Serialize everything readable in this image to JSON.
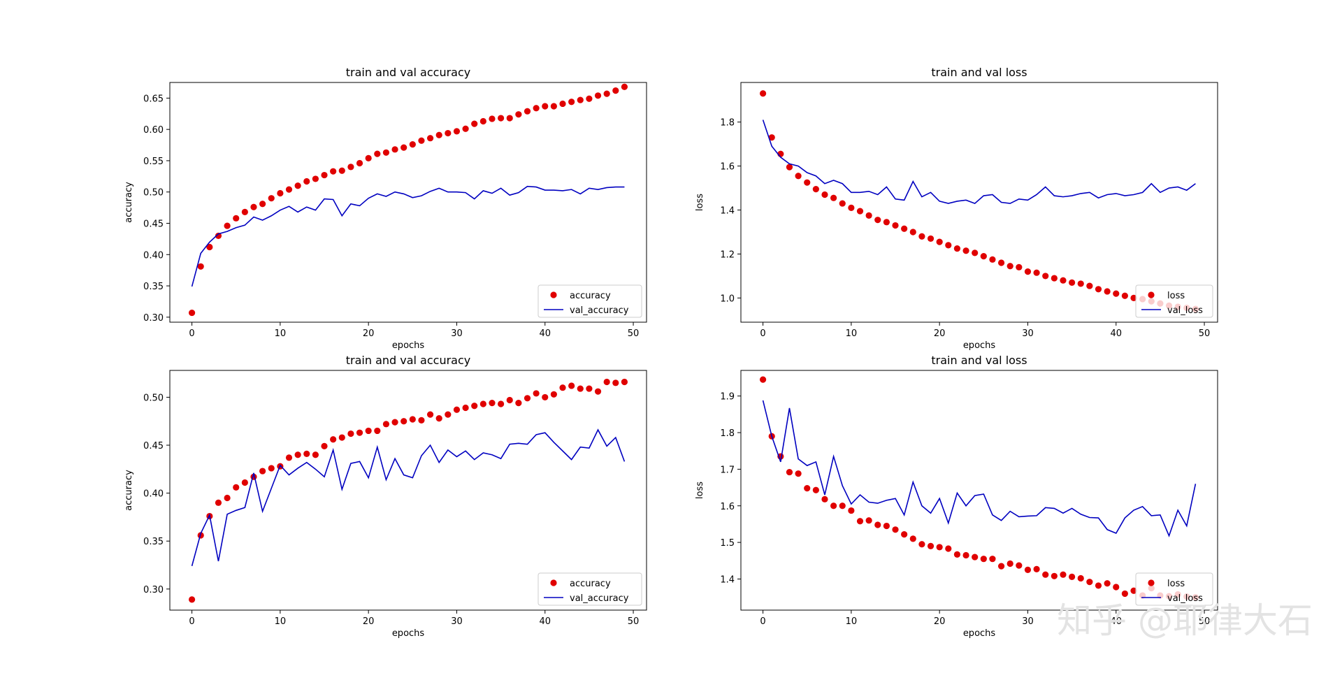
{
  "colors": {
    "train": "#e00000",
    "val": "#0000c0",
    "axis": "#000000",
    "watermark": "#e3e3e3"
  },
  "watermark": "知乎 @耶律大石",
  "chart_data": [
    {
      "type": "scatter+line",
      "title": "train and val accuracy",
      "xlabel": "epochs",
      "ylabel": "accuracy",
      "xlim": [
        -2.5,
        51.5
      ],
      "ylim": [
        0.292,
        0.675
      ],
      "xticks": [
        0,
        10,
        20,
        30,
        40,
        50
      ],
      "yticks": [
        0.3,
        0.35,
        0.4,
        0.45,
        0.5,
        0.55,
        0.6,
        0.65
      ],
      "ytick_labels": [
        "0.30",
        "0.35",
        "0.40",
        "0.45",
        "0.50",
        "0.55",
        "0.60",
        "0.65"
      ],
      "legend": "lower-right",
      "series": [
        {
          "name": "accuracy",
          "style": "dots",
          "values": [
            0.307,
            0.381,
            0.412,
            0.43,
            0.446,
            0.458,
            0.468,
            0.476,
            0.481,
            0.49,
            0.498,
            0.504,
            0.51,
            0.517,
            0.521,
            0.527,
            0.533,
            0.534,
            0.54,
            0.546,
            0.554,
            0.561,
            0.563,
            0.568,
            0.571,
            0.576,
            0.582,
            0.586,
            0.591,
            0.594,
            0.597,
            0.601,
            0.609,
            0.613,
            0.617,
            0.618,
            0.618,
            0.624,
            0.629,
            0.634,
            0.637,
            0.637,
            0.641,
            0.644,
            0.647,
            0.649,
            0.654,
            0.657,
            0.662,
            0.668
          ]
        },
        {
          "name": "val_accuracy",
          "style": "line",
          "values": [
            0.349,
            0.402,
            0.42,
            0.433,
            0.437,
            0.443,
            0.447,
            0.46,
            0.455,
            0.462,
            0.471,
            0.477,
            0.468,
            0.476,
            0.471,
            0.489,
            0.488,
            0.462,
            0.481,
            0.478,
            0.49,
            0.497,
            0.493,
            0.5,
            0.497,
            0.491,
            0.494,
            0.501,
            0.506,
            0.5,
            0.5,
            0.499,
            0.489,
            0.502,
            0.498,
            0.506,
            0.495,
            0.499,
            0.509,
            0.508,
            0.503,
            0.503,
            0.502,
            0.504,
            0.497,
            0.506,
            0.504,
            0.507,
            0.508,
            0.508
          ]
        }
      ]
    },
    {
      "type": "scatter+line",
      "title": "train  and val loss",
      "xlabel": "epochs",
      "ylabel": "loss",
      "xlim": [
        -2.5,
        51.5
      ],
      "ylim": [
        0.89,
        1.98
      ],
      "xticks": [
        0,
        10,
        20,
        30,
        40,
        50
      ],
      "yticks": [
        1.0,
        1.2,
        1.4,
        1.6,
        1.8
      ],
      "ytick_labels": [
        "1.0",
        "1.2",
        "1.4",
        "1.6",
        "1.8"
      ],
      "legend": "lower-right",
      "series": [
        {
          "name": "loss",
          "style": "dots",
          "values": [
            1.93,
            1.73,
            1.655,
            1.595,
            1.555,
            1.525,
            1.495,
            1.47,
            1.455,
            1.43,
            1.41,
            1.395,
            1.375,
            1.355,
            1.345,
            1.33,
            1.315,
            1.3,
            1.28,
            1.27,
            1.255,
            1.24,
            1.225,
            1.215,
            1.205,
            1.19,
            1.175,
            1.16,
            1.145,
            1.14,
            1.12,
            1.115,
            1.1,
            1.09,
            1.08,
            1.07,
            1.065,
            1.055,
            1.04,
            1.03,
            1.02,
            1.01,
            1.0,
            0.995,
            0.985,
            0.975,
            0.965,
            0.96,
            0.955,
            0.95
          ]
        },
        {
          "name": "val_loss",
          "style": "line",
          "values": [
            1.81,
            1.69,
            1.64,
            1.61,
            1.6,
            1.57,
            1.555,
            1.52,
            1.535,
            1.52,
            1.48,
            1.48,
            1.485,
            1.47,
            1.505,
            1.45,
            1.445,
            1.53,
            1.46,
            1.48,
            1.44,
            1.43,
            1.44,
            1.445,
            1.43,
            1.465,
            1.47,
            1.435,
            1.43,
            1.45,
            1.445,
            1.47,
            1.505,
            1.465,
            1.46,
            1.465,
            1.475,
            1.48,
            1.455,
            1.47,
            1.475,
            1.465,
            1.47,
            1.48,
            1.52,
            1.48,
            1.5,
            1.505,
            1.49,
            1.52
          ]
        }
      ]
    },
    {
      "type": "scatter+line",
      "title": "train and val accuracy",
      "xlabel": "epochs",
      "ylabel": "accuracy",
      "xlim": [
        -2.5,
        51.5
      ],
      "ylim": [
        0.278,
        0.528
      ],
      "xticks": [
        0,
        10,
        20,
        30,
        40,
        50
      ],
      "yticks": [
        0.3,
        0.35,
        0.4,
        0.45,
        0.5
      ],
      "ytick_labels": [
        "0.30",
        "0.35",
        "0.40",
        "0.45",
        "0.50"
      ],
      "legend": "lower-right",
      "series": [
        {
          "name": "accuracy",
          "style": "dots",
          "values": [
            0.289,
            0.356,
            0.376,
            0.39,
            0.395,
            0.406,
            0.411,
            0.417,
            0.423,
            0.426,
            0.428,
            0.437,
            0.44,
            0.441,
            0.44,
            0.449,
            0.456,
            0.458,
            0.462,
            0.463,
            0.465,
            0.465,
            0.472,
            0.474,
            0.475,
            0.477,
            0.476,
            0.482,
            0.478,
            0.482,
            0.487,
            0.489,
            0.491,
            0.493,
            0.494,
            0.493,
            0.497,
            0.494,
            0.499,
            0.504,
            0.5,
            0.503,
            0.51,
            0.512,
            0.509,
            0.509,
            0.506,
            0.516,
            0.515,
            0.516
          ]
        },
        {
          "name": "val_accuracy",
          "style": "line",
          "values": [
            0.324,
            0.358,
            0.377,
            0.329,
            0.378,
            0.382,
            0.385,
            0.421,
            0.381,
            0.405,
            0.429,
            0.419,
            0.426,
            0.432,
            0.425,
            0.417,
            0.445,
            0.404,
            0.431,
            0.433,
            0.416,
            0.448,
            0.414,
            0.436,
            0.419,
            0.416,
            0.439,
            0.45,
            0.432,
            0.445,
            0.438,
            0.444,
            0.435,
            0.442,
            0.44,
            0.436,
            0.451,
            0.452,
            0.451,
            0.461,
            0.463,
            0.453,
            0.444,
            0.435,
            0.448,
            0.447,
            0.466,
            0.449,
            0.458,
            0.433
          ]
        }
      ]
    },
    {
      "type": "scatter+line",
      "title": "train  and val loss",
      "xlabel": "epochs",
      "ylabel": "loss",
      "xlim": [
        -2.5,
        51.5
      ],
      "ylim": [
        1.315,
        1.97
      ],
      "xticks": [
        0,
        10,
        20,
        30,
        40,
        50
      ],
      "yticks": [
        1.4,
        1.5,
        1.6,
        1.7,
        1.8,
        1.9
      ],
      "ytick_labels": [
        "1.4",
        "1.5",
        "1.6",
        "1.7",
        "1.8",
        "1.9"
      ],
      "legend": "lower-right",
      "series": [
        {
          "name": "loss",
          "style": "dots",
          "values": [
            1.945,
            1.79,
            1.735,
            1.692,
            1.688,
            1.648,
            1.643,
            1.618,
            1.6,
            1.6,
            1.587,
            1.558,
            1.56,
            1.548,
            1.545,
            1.535,
            1.522,
            1.51,
            1.495,
            1.49,
            1.487,
            1.483,
            1.467,
            1.465,
            1.46,
            1.455,
            1.455,
            1.435,
            1.442,
            1.437,
            1.425,
            1.427,
            1.412,
            1.408,
            1.412,
            1.406,
            1.402,
            1.392,
            1.382,
            1.388,
            1.378,
            1.36,
            1.368,
            1.355,
            1.375,
            1.355,
            1.353,
            1.358,
            1.352,
            1.35
          ]
        },
        {
          "name": "val_loss",
          "style": "line",
          "values": [
            1.888,
            1.79,
            1.72,
            1.867,
            1.728,
            1.71,
            1.72,
            1.63,
            1.735,
            1.655,
            1.605,
            1.63,
            1.61,
            1.607,
            1.615,
            1.62,
            1.575,
            1.665,
            1.6,
            1.58,
            1.62,
            1.553,
            1.635,
            1.6,
            1.628,
            1.632,
            1.575,
            1.56,
            1.585,
            1.57,
            1.572,
            1.573,
            1.595,
            1.593,
            1.58,
            1.593,
            1.577,
            1.568,
            1.567,
            1.535,
            1.525,
            1.567,
            1.588,
            1.598,
            1.573,
            1.575,
            1.518,
            1.588,
            1.545,
            1.66
          ]
        }
      ]
    }
  ]
}
